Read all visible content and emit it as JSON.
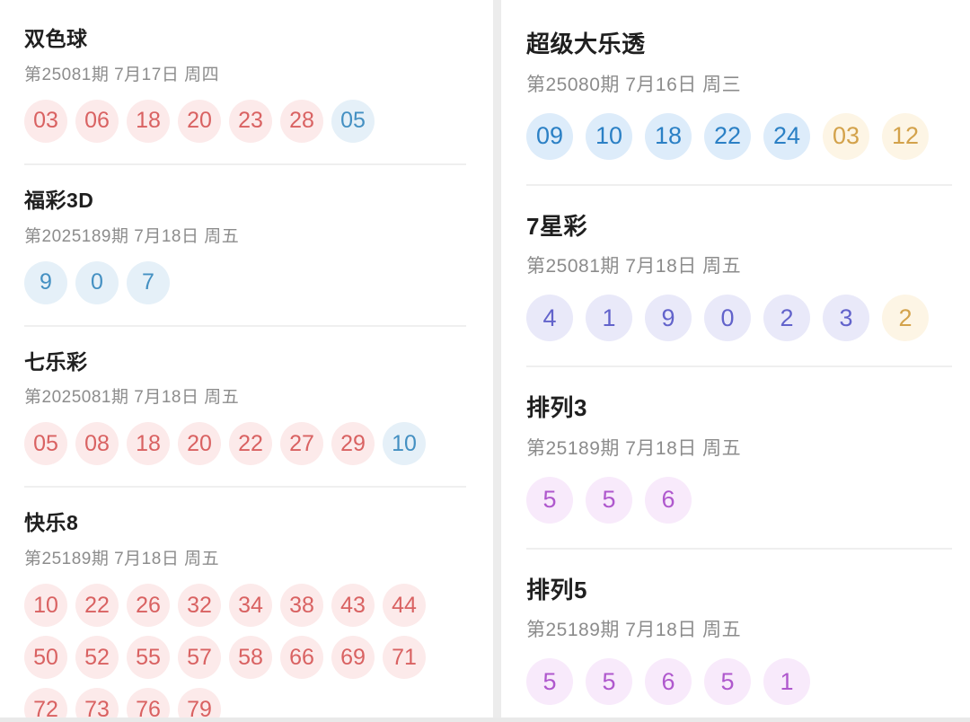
{
  "page": {
    "kind": "lottery-results-list",
    "background": "#ffffff",
    "divider_color": "#ececec"
  },
  "ball_colors": {
    "red": {
      "bg": "#fceaea",
      "text": "#d96262"
    },
    "blue": {
      "bg": "#e5f0f8",
      "text": "#4490c2"
    },
    "deepblue": {
      "bg": "#ddecfa",
      "text": "#2b80c5"
    },
    "gold": {
      "bg": "#fdf5e5",
      "text": "#d3a24b"
    },
    "indigo": {
      "bg": "#e9e9f9",
      "text": "#6263cb"
    },
    "magenta": {
      "bg": "#f8eafb",
      "text": "#af58cd"
    }
  },
  "columns": [
    {
      "name": "left",
      "sections": [
        {
          "title": "双色球",
          "date": "第25081期 7月17日 周四",
          "groups": [
            {
              "color": "red",
              "balls": [
                "03",
                "06",
                "18",
                "20",
                "23",
                "28"
              ]
            },
            {
              "color": "blue",
              "balls": [
                "05"
              ]
            }
          ]
        },
        {
          "title": "福彩3D",
          "date": "第2025189期 7月18日 周五",
          "groups": [
            {
              "color": "blue",
              "balls": [
                "9",
                "0",
                "7"
              ]
            }
          ]
        },
        {
          "title": "七乐彩",
          "date": "第2025081期 7月18日 周五",
          "groups": [
            {
              "color": "red",
              "balls": [
                "05",
                "08",
                "18",
                "20",
                "22",
                "27",
                "29"
              ]
            },
            {
              "color": "blue",
              "balls": [
                "10"
              ]
            }
          ]
        },
        {
          "title": "快乐8",
          "date": "第25189期 7月18日 周五",
          "wrap": 8,
          "groups": [
            {
              "color": "red",
              "balls": [
                "10",
                "22",
                "26",
                "32",
                "34",
                "38",
                "43",
                "44",
                "50",
                "52",
                "55",
                "57",
                "58",
                "66",
                "69",
                "71",
                "72",
                "73",
                "76",
                "79"
              ]
            }
          ]
        }
      ]
    },
    {
      "name": "right",
      "sections": [
        {
          "title": "超级大乐透",
          "date": "第25080期 7月16日 周三",
          "groups": [
            {
              "color": "deepblue",
              "balls": [
                "09",
                "10",
                "18",
                "22",
                "24"
              ]
            },
            {
              "color": "gold",
              "balls": [
                "03",
                "12"
              ]
            }
          ]
        },
        {
          "title": "7星彩",
          "date": "第25081期 7月18日 周五",
          "groups": [
            {
              "color": "indigo",
              "balls": [
                "4",
                "1",
                "9",
                "0",
                "2",
                "3"
              ]
            },
            {
              "color": "gold",
              "balls": [
                "2"
              ]
            }
          ]
        },
        {
          "title": "排列3",
          "date": "第25189期 7月18日 周五",
          "groups": [
            {
              "color": "magenta",
              "balls": [
                "5",
                "5",
                "6"
              ]
            }
          ]
        },
        {
          "title": "排列5",
          "date": "第25189期 7月18日 周五",
          "groups": [
            {
              "color": "magenta",
              "balls": [
                "5",
                "5",
                "6",
                "5",
                "1"
              ]
            }
          ]
        }
      ]
    }
  ]
}
